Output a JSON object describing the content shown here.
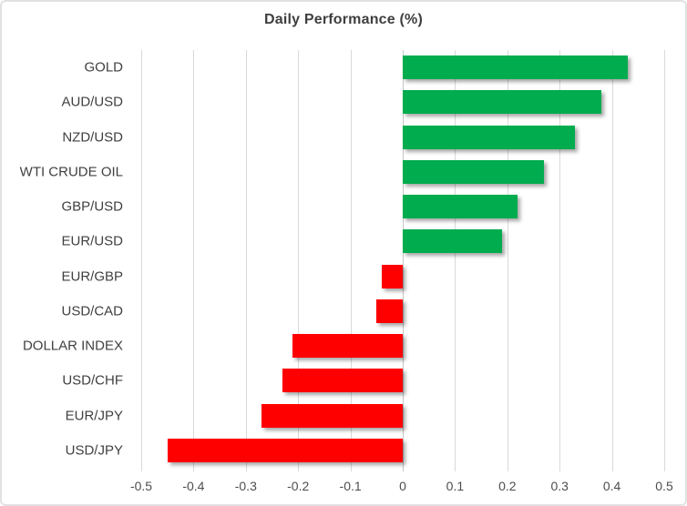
{
  "chart_data": {
    "type": "bar",
    "orientation": "horizontal",
    "title": "Daily Performance (%)",
    "categories": [
      "GOLD",
      "AUD/USD",
      "NZD/USD",
      "WTI CRUDE OIL",
      "GBP/USD",
      "EUR/USD",
      "EUR/GBP",
      "USD/CAD",
      "DOLLAR INDEX",
      "USD/CHF",
      "EUR/JPY",
      "USD/JPY"
    ],
    "values": [
      0.43,
      0.38,
      0.33,
      0.27,
      0.22,
      0.19,
      -0.04,
      -0.05,
      -0.21,
      -0.23,
      -0.27,
      -0.45
    ],
    "xlim": [
      -0.5,
      0.5
    ],
    "xticks": [
      -0.5,
      -0.4,
      -0.3,
      -0.2,
      -0.1,
      0,
      0.1,
      0.2,
      0.3,
      0.4,
      0.5
    ],
    "xtick_labels": [
      "-0.5",
      "-0.4",
      "-0.3",
      "-0.2",
      "-0.1",
      "0",
      "0.1",
      "0.2",
      "0.3",
      "0.4",
      "0.5"
    ],
    "xlabel": "",
    "ylabel": "",
    "grid": "vertical-only",
    "legend": "none",
    "colors": {
      "positive": "#00AC4E",
      "negative": "#FF0000",
      "gridline": "#D9D9D9",
      "zero_axis": "#C6C6C6",
      "title_text": "#3F3F3F",
      "category_text": "#404040",
      "tick_text": "#4D4D4D",
      "chart_border": "#E2E2E2",
      "background": "#FFFFFF"
    }
  }
}
